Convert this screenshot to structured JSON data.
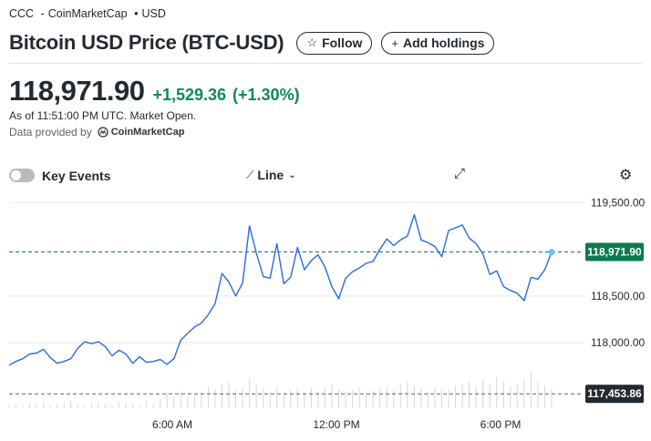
{
  "header": {
    "exchange": "CCC",
    "source": "CoinMarketCap",
    "currency": "USD",
    "title": "Bitcoin USD Price (BTC-USD)",
    "follow_label": "Follow",
    "add_holdings_label": "Add holdings"
  },
  "quote": {
    "price": "118,971.90",
    "change": "+1,529.36",
    "change_pct": "(+1.30%)",
    "as_of": "As of 11:51:00 PM UTC. Market Open.",
    "provided_by": "Data provided by",
    "provider_name": "CoinMarketCap"
  },
  "toolbar": {
    "key_events_label": "Key Events",
    "chart_type_label": "Line"
  },
  "icons": {
    "follow": "star-icon",
    "add": "plus-icon",
    "line": "line-chart-icon",
    "dropdown": "chevron-down-icon",
    "expand": "expand-icon",
    "settings": "gear-icon"
  },
  "colors": {
    "line": "#2a6be1",
    "up": "#0b8a5a",
    "price_tag": "#0b7a4f",
    "prev_close_tag": "#232a31"
  },
  "chart_data": {
    "type": "line",
    "title": "",
    "x_ticks": [
      "6:00 AM",
      "12:00 PM",
      "6:00 PM"
    ],
    "y_ticks": [
      "119,500.00",
      "118,500.00",
      "118,000.00"
    ],
    "y_range": [
      117300,
      119600
    ],
    "current_price": 118971.9,
    "current_price_label": "118,971.90",
    "previous_close": 117453.86,
    "previous_close_label": "117,453.86",
    "series": [
      {
        "values": [
          117760,
          117800,
          117830,
          117880,
          117890,
          117930,
          117840,
          117780,
          117800,
          117830,
          117940,
          118010,
          117990,
          118010,
          117960,
          117860,
          117920,
          117880,
          117780,
          117850,
          117790,
          117800,
          117820,
          117770,
          117830,
          118030,
          118100,
          118170,
          118210,
          118300,
          118420,
          118740,
          118650,
          118500,
          118640,
          119250,
          118960,
          118710,
          118690,
          119060,
          118630,
          118700,
          119020,
          118780,
          118880,
          118940,
          118810,
          118600,
          118470,
          118690,
          118760,
          118800,
          118850,
          118870,
          119000,
          119110,
          119040,
          119100,
          119140,
          119370,
          119100,
          119070,
          119030,
          118920,
          119200,
          119230,
          119260,
          119120,
          119060,
          118950,
          118730,
          118770,
          118600,
          118560,
          118530,
          118450,
          118700,
          118680,
          118780,
          118970
        ],
        "volume": [
          2,
          3,
          2,
          4,
          3,
          5,
          2,
          3,
          4,
          6,
          3,
          2,
          4,
          5,
          3,
          2,
          5,
          4,
          3,
          2,
          6,
          4,
          8,
          12,
          10,
          14,
          9,
          11,
          13,
          18,
          16,
          20,
          22,
          15,
          18,
          24,
          20,
          16,
          14,
          18,
          12,
          15,
          17,
          13,
          16,
          14,
          18,
          20,
          16,
          14,
          15,
          17,
          12,
          14,
          16,
          18,
          15,
          20,
          22,
          18,
          16,
          14,
          17,
          15,
          16,
          18,
          20,
          22,
          18,
          24,
          20,
          26,
          22,
          18,
          20,
          24,
          30,
          22,
          18,
          16
        ]
      }
    ],
    "grid": true,
    "legend": "none"
  }
}
